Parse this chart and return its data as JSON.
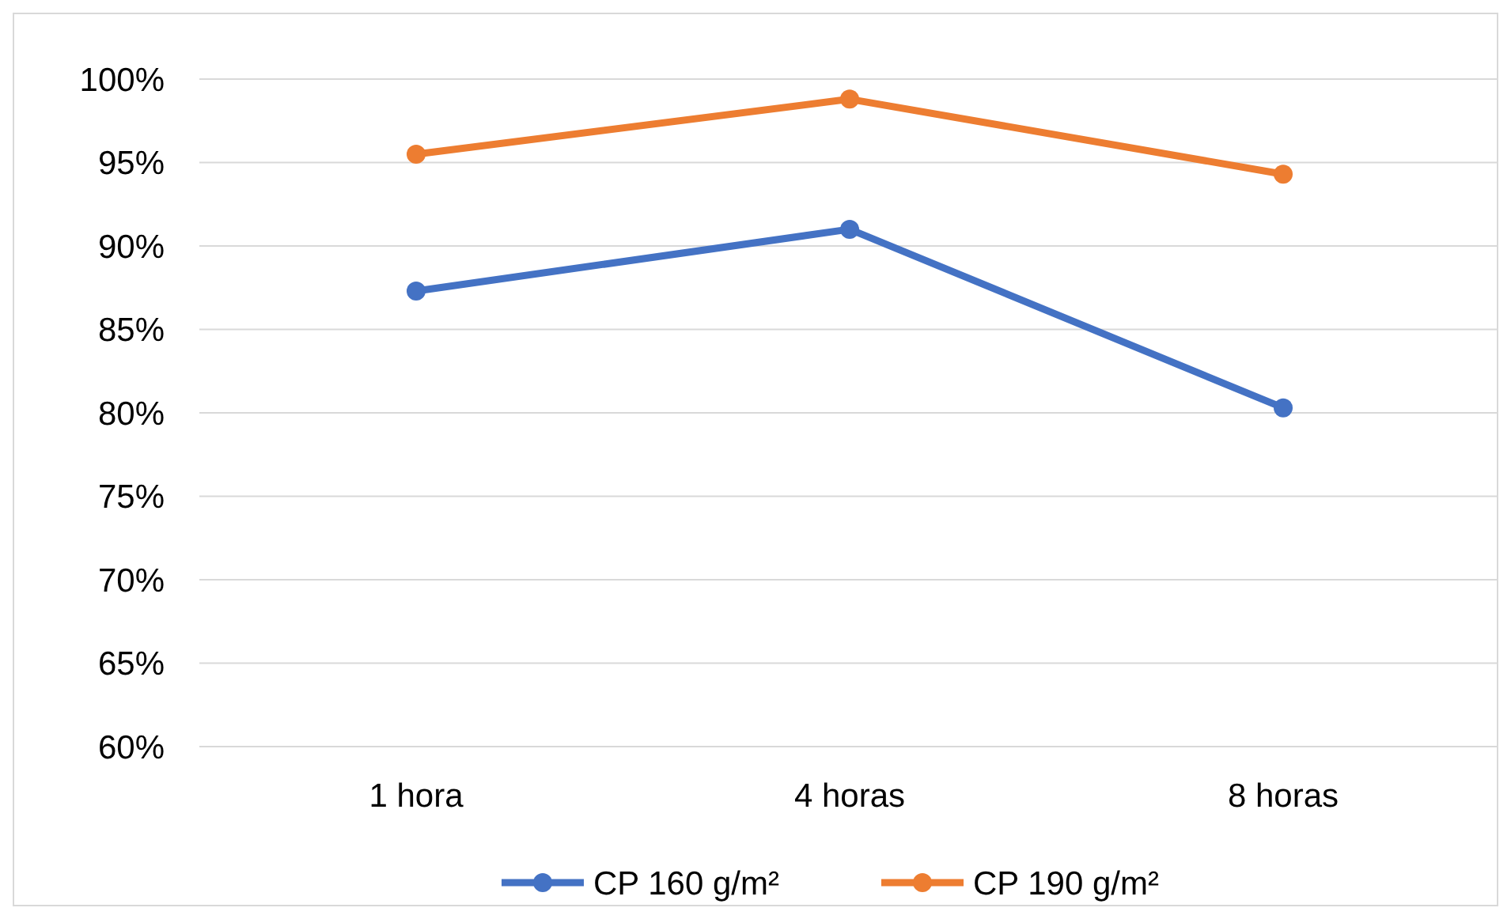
{
  "chart_data": {
    "type": "line",
    "categories": [
      "1 hora",
      "4 horas",
      "8 horas"
    ],
    "series": [
      {
        "name": "CP 160 g/m²",
        "color": "#4472c4",
        "values": [
          87.3,
          91.0,
          80.3
        ]
      },
      {
        "name": "CP 190 g/m²",
        "color": "#ed7d31",
        "values": [
          95.5,
          98.8,
          94.3
        ]
      }
    ],
    "ylim": [
      60,
      100
    ],
    "yticks": [
      {
        "value": 60,
        "label": "60%"
      },
      {
        "value": 65,
        "label": "65%"
      },
      {
        "value": 70,
        "label": "70%"
      },
      {
        "value": 75,
        "label": "75%"
      },
      {
        "value": 80,
        "label": "80%"
      },
      {
        "value": 85,
        "label": "85%"
      },
      {
        "value": 90,
        "label": "90%"
      },
      {
        "value": 95,
        "label": "95%"
      },
      {
        "value": 100,
        "label": "100%"
      }
    ],
    "grid": "y",
    "legend": "bottom",
    "marker": "circle",
    "line_style": "solid"
  }
}
